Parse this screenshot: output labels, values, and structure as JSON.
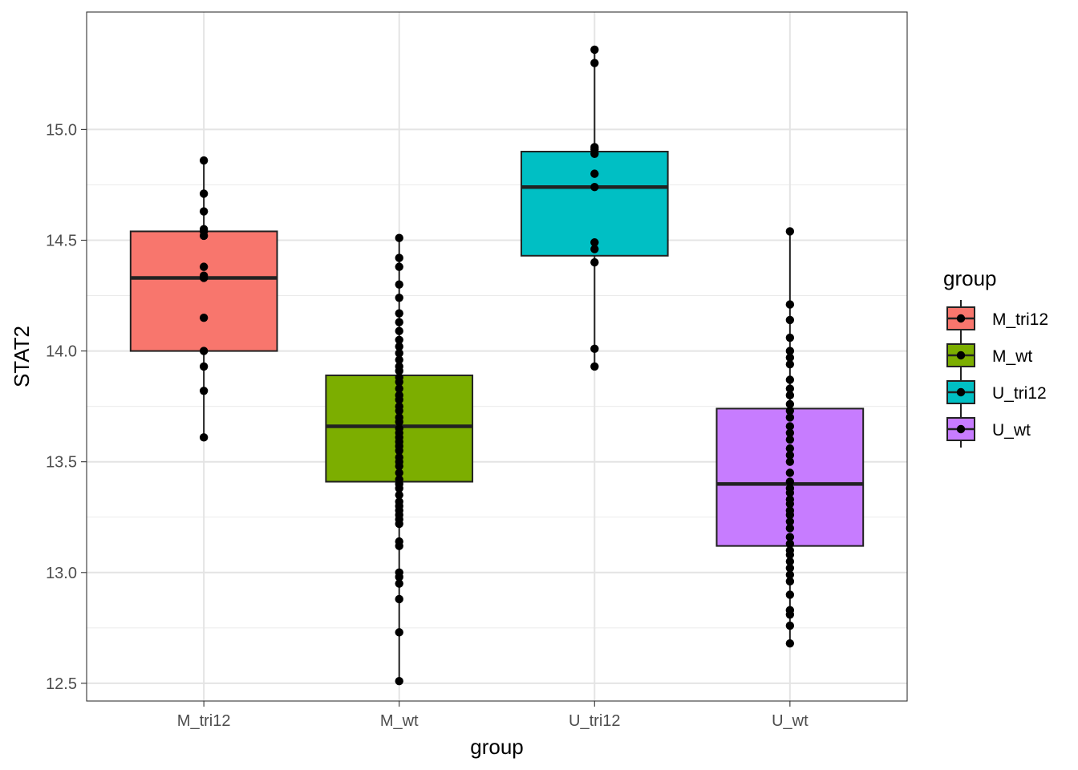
{
  "chart_data": {
    "type": "boxplot",
    "title": "",
    "xlabel": "group",
    "ylabel": "STAT2",
    "ylim": [
      12.42,
      15.53
    ],
    "yticks": [
      12.5,
      13.0,
      13.5,
      14.0,
      14.5,
      15.0
    ],
    "ytick_labels": [
      "12.5",
      "13.0",
      "13.5",
      "14.0",
      "14.5",
      "15.0"
    ],
    "categories": [
      "M_tri12",
      "M_wt",
      "U_tri12",
      "U_wt"
    ],
    "legend": {
      "title": "group",
      "position": "right"
    },
    "series": [
      {
        "name": "M_tri12",
        "color": "#F8766D",
        "min": 13.61,
        "q1": 14.0,
        "median": 14.33,
        "q3": 14.54,
        "max": 14.86,
        "points": [
          13.61,
          13.82,
          13.93,
          14.0,
          14.15,
          14.33,
          14.34,
          14.38,
          14.52,
          14.54,
          14.55,
          14.63,
          14.71,
          14.86
        ]
      },
      {
        "name": "M_wt",
        "color": "#7CAE00",
        "min": 12.51,
        "q1": 13.41,
        "median": 13.66,
        "q3": 13.89,
        "max": 14.51,
        "points": [
          12.51,
          12.73,
          12.88,
          12.95,
          12.98,
          13.0,
          13.12,
          13.14,
          13.22,
          13.24,
          13.26,
          13.28,
          13.3,
          13.32,
          13.35,
          13.38,
          13.4,
          13.42,
          13.45,
          13.48,
          13.5,
          13.52,
          13.55,
          13.57,
          13.59,
          13.61,
          13.63,
          13.65,
          13.68,
          13.7,
          13.73,
          13.75,
          13.78,
          13.8,
          13.83,
          13.86,
          13.88,
          13.91,
          13.93,
          13.96,
          13.99,
          14.02,
          14.05,
          14.09,
          14.13,
          14.17,
          14.24,
          14.3,
          14.38,
          14.42,
          14.51
        ]
      },
      {
        "name": "U_tri12",
        "color": "#00BFC4",
        "min": 13.93,
        "q1": 14.43,
        "median": 14.74,
        "q3": 14.9,
        "max": 15.36,
        "points": [
          13.93,
          14.01,
          14.4,
          14.46,
          14.49,
          14.74,
          14.8,
          14.89,
          14.91,
          14.92,
          15.3,
          15.36
        ]
      },
      {
        "name": "U_wt",
        "color": "#C77CFF",
        "min": 12.68,
        "q1": 13.12,
        "median": 13.4,
        "q3": 13.74,
        "max": 14.54,
        "points": [
          12.68,
          12.76,
          12.81,
          12.83,
          12.9,
          12.96,
          12.99,
          13.02,
          13.05,
          13.08,
          13.1,
          13.13,
          13.16,
          13.2,
          13.23,
          13.26,
          13.28,
          13.31,
          13.33,
          13.36,
          13.38,
          13.41,
          13.45,
          13.5,
          13.53,
          13.56,
          13.6,
          13.63,
          13.66,
          13.7,
          13.73,
          13.76,
          13.8,
          13.83,
          13.87,
          13.94,
          13.97,
          14.0,
          14.06,
          14.14,
          14.21,
          14.54
        ]
      }
    ]
  }
}
